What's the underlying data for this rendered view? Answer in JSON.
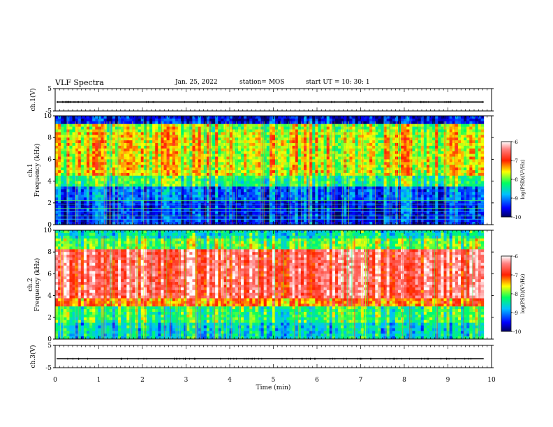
{
  "header": {
    "title": "VLF Spectra",
    "date": "Jan. 25, 2022",
    "station_label": "station= MOS",
    "start_label": "start  UT =   10: 30: 1"
  },
  "chart_data": [
    {
      "type": "line",
      "ylabel": "ch.1(V)",
      "ylim": [
        -5,
        5
      ],
      "yticks": [
        5,
        -5
      ],
      "series": [
        {
          "values_description_free": true,
          "level": -1
        }
      ]
    },
    {
      "type": "heatmap",
      "ylabel": "ch.1\nFrequency (kHz)",
      "ylim": [
        0,
        10
      ],
      "yticks": [
        0,
        2,
        4,
        6,
        8,
        10
      ],
      "colorbar": {
        "label": "log(PSD)(V²/Hz)",
        "ticks": [
          -6,
          -7,
          -8,
          -9,
          -10
        ],
        "range": [
          -10,
          -6
        ]
      },
      "lines_khz": [
        0.5,
        0.8,
        1.2,
        1.5,
        1.9,
        2.2
      ]
    },
    {
      "type": "heatmap",
      "ylabel": "ch.2\nFrequency (kHz)",
      "ylim": [
        0,
        10
      ],
      "yticks": [
        0,
        2,
        4,
        6,
        8,
        10
      ],
      "colorbar": {
        "label": "log(PSD)(V²/Hz)",
        "ticks": [
          -6,
          -7,
          -8,
          -9,
          -10
        ],
        "range": [
          -10,
          -6
        ]
      }
    },
    {
      "type": "line",
      "ylabel": "ch.3(V)",
      "ylim": [
        -5,
        5
      ],
      "yticks": [
        5,
        -5
      ],
      "xlabel": "Time (min)",
      "xlim": [
        0,
        10
      ],
      "xticks": [
        0,
        1,
        2,
        3,
        4,
        5,
        6,
        7,
        8,
        9,
        10
      ],
      "series": [
        {
          "level": -1
        }
      ]
    }
  ],
  "data_end_min": 9.82
}
